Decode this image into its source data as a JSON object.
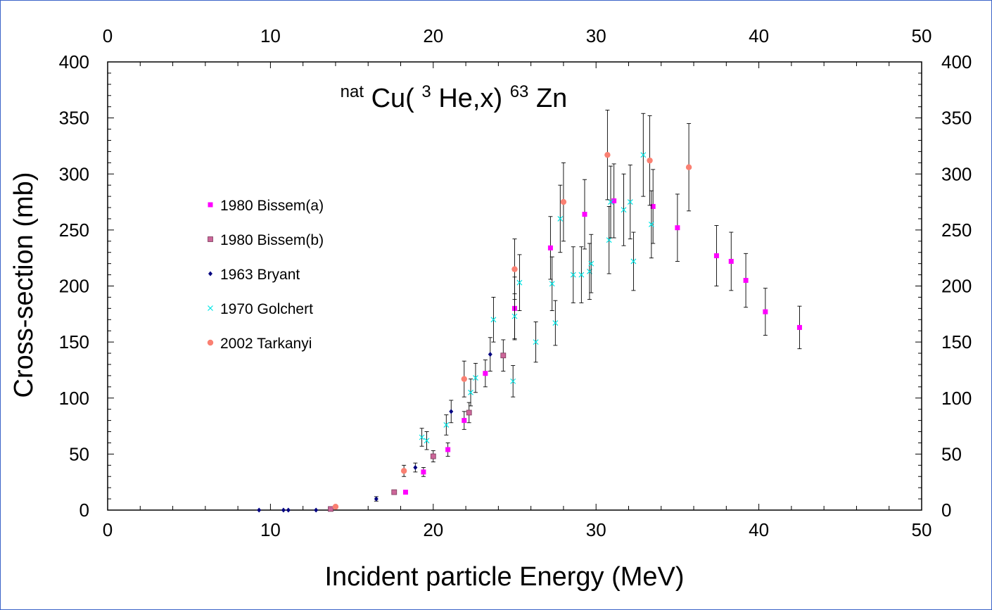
{
  "chart_data": {
    "type": "scatter",
    "title_parts": [
      "nat",
      "Cu(",
      "3",
      "He,x)",
      "63",
      "Zn"
    ],
    "xlabel": "Incident particle Energy (MeV)",
    "ylabel": "Cross-section (mb)",
    "xlim": [
      0,
      50
    ],
    "ylim": [
      0,
      400
    ],
    "x_ticks": [
      0,
      10,
      20,
      30,
      40,
      50
    ],
    "y_ticks": [
      0,
      50,
      100,
      150,
      200,
      250,
      300,
      350,
      400
    ],
    "grid": false,
    "legend_position": "left",
    "series": [
      {
        "name": "1980 Bissem(a)",
        "marker": "square",
        "color": "#ff00ff",
        "points": [
          {
            "x": 18.3,
            "y": 16,
            "err": 0
          },
          {
            "x": 19.4,
            "y": 34,
            "err": 4
          },
          {
            "x": 20.9,
            "y": 54,
            "err": 6
          },
          {
            "x": 21.9,
            "y": 80,
            "err": 8
          },
          {
            "x": 23.2,
            "y": 122,
            "err": 12
          },
          {
            "x": 25.0,
            "y": 180,
            "err": 28
          },
          {
            "x": 27.2,
            "y": 234,
            "err": 28
          },
          {
            "x": 29.3,
            "y": 264,
            "err": 31
          },
          {
            "x": 31.1,
            "y": 276,
            "err": 33
          },
          {
            "x": 33.5,
            "y": 271,
            "err": 33
          },
          {
            "x": 35.0,
            "y": 252,
            "err": 30
          },
          {
            "x": 37.4,
            "y": 227,
            "err": 27
          },
          {
            "x": 38.3,
            "y": 222,
            "err": 26
          },
          {
            "x": 39.2,
            "y": 205,
            "err": 24
          },
          {
            "x": 40.4,
            "y": 177,
            "err": 21
          },
          {
            "x": 42.5,
            "y": 163,
            "err": 19
          }
        ]
      },
      {
        "name": "1980 Bissem(b)",
        "marker": "square",
        "color": "#cc6699",
        "points": [
          {
            "x": 13.7,
            "y": 1,
            "err": 0
          },
          {
            "x": 17.6,
            "y": 16,
            "err": 0
          },
          {
            "x": 20.0,
            "y": 48,
            "err": 5
          },
          {
            "x": 22.2,
            "y": 87,
            "err": 9
          },
          {
            "x": 24.3,
            "y": 138,
            "err": 14
          }
        ]
      },
      {
        "name": "1963 Bryant",
        "marker": "diamond",
        "color": "#000080",
        "points": [
          {
            "x": 9.3,
            "y": 0,
            "err": 0
          },
          {
            "x": 10.8,
            "y": 0,
            "err": 0
          },
          {
            "x": 11.1,
            "y": 0,
            "err": 0
          },
          {
            "x": 12.8,
            "y": 0,
            "err": 0
          },
          {
            "x": 16.5,
            "y": 10,
            "err": 2
          },
          {
            "x": 18.9,
            "y": 38,
            "err": 4
          },
          {
            "x": 21.1,
            "y": 88,
            "err": 10
          },
          {
            "x": 23.5,
            "y": 139,
            "err": 15
          }
        ]
      },
      {
        "name": "1970 Golchert",
        "marker": "x",
        "color": "#00e5e5",
        "points": [
          {
            "x": 19.3,
            "y": 65,
            "err": 8
          },
          {
            "x": 19.6,
            "y": 62,
            "err": 8
          },
          {
            "x": 20.8,
            "y": 76,
            "err": 9
          },
          {
            "x": 22.3,
            "y": 105,
            "err": 12
          },
          {
            "x": 22.6,
            "y": 118,
            "err": 13
          },
          {
            "x": 23.7,
            "y": 170,
            "err": 20
          },
          {
            "x": 24.9,
            "y": 115,
            "err": 14
          },
          {
            "x": 25.0,
            "y": 173,
            "err": 20
          },
          {
            "x": 25.3,
            "y": 203,
            "err": 25
          },
          {
            "x": 26.3,
            "y": 150,
            "err": 18
          },
          {
            "x": 27.3,
            "y": 202,
            "err": 24
          },
          {
            "x": 27.5,
            "y": 167,
            "err": 20
          },
          {
            "x": 27.8,
            "y": 260,
            "err": 30
          },
          {
            "x": 28.6,
            "y": 210,
            "err": 25
          },
          {
            "x": 29.1,
            "y": 210,
            "err": 25
          },
          {
            "x": 29.6,
            "y": 213,
            "err": 25
          },
          {
            "x": 29.7,
            "y": 220,
            "err": 26
          },
          {
            "x": 30.8,
            "y": 241,
            "err": 30
          },
          {
            "x": 30.9,
            "y": 275,
            "err": 32
          },
          {
            "x": 31.7,
            "y": 268,
            "err": 32
          },
          {
            "x": 32.1,
            "y": 275,
            "err": 33
          },
          {
            "x": 32.3,
            "y": 222,
            "err": 26
          },
          {
            "x": 32.9,
            "y": 317,
            "err": 37
          },
          {
            "x": 33.4,
            "y": 255,
            "err": 30
          }
        ]
      },
      {
        "name": "2002 Tarkanyi",
        "marker": "circle",
        "color": "#fa8072",
        "points": [
          {
            "x": 14.0,
            "y": 3,
            "err": 0
          },
          {
            "x": 18.2,
            "y": 35,
            "err": 5
          },
          {
            "x": 21.9,
            "y": 117,
            "err": 16
          },
          {
            "x": 25.0,
            "y": 215,
            "err": 27
          },
          {
            "x": 28.0,
            "y": 275,
            "err": 35
          },
          {
            "x": 30.7,
            "y": 317,
            "err": 40
          },
          {
            "x": 33.3,
            "y": 312,
            "err": 40
          },
          {
            "x": 35.7,
            "y": 306,
            "err": 39
          }
        ]
      }
    ]
  },
  "colors": {
    "frame_border": "#3c64c8",
    "error_bar": "#000000"
  }
}
